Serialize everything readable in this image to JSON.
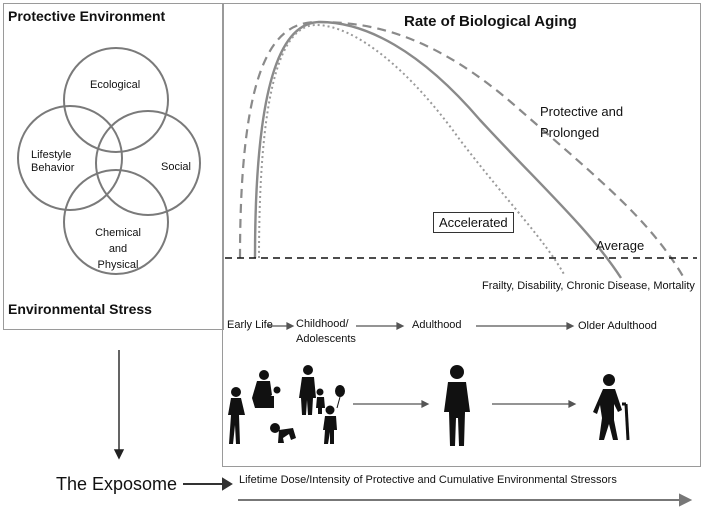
{
  "left_panel": {
    "title_top": "Protective Environment",
    "title_bottom": "Environmental Stress",
    "circles": {
      "ecological": "Ecological",
      "lifestyle": "Lifestyle Behavior",
      "social": "Social",
      "chemical": "Chemical and Physical"
    }
  },
  "curve_panel": {
    "title": "Rate of Biological Aging",
    "protective_label": "Protective and Prolonged",
    "accelerated_label": "Accelerated",
    "average_label": "Average",
    "outcomes_label": "Frailty, Disability, Chronic Disease, Mortality"
  },
  "life_stages": {
    "early_life": "Early Life",
    "childhood": "Childhood/ Adolescents",
    "adulthood": "Adulthood",
    "older_adulthood": "Older Adulthood"
  },
  "bottom": {
    "exposome_label": "The Exposome",
    "lifetime_label": "Lifetime Dose/Intensity of Protective and Cumulative Environmental Stressors"
  },
  "colors": {
    "curve": "#8a8a8a",
    "line": "#444444",
    "figure": "#111111"
  }
}
